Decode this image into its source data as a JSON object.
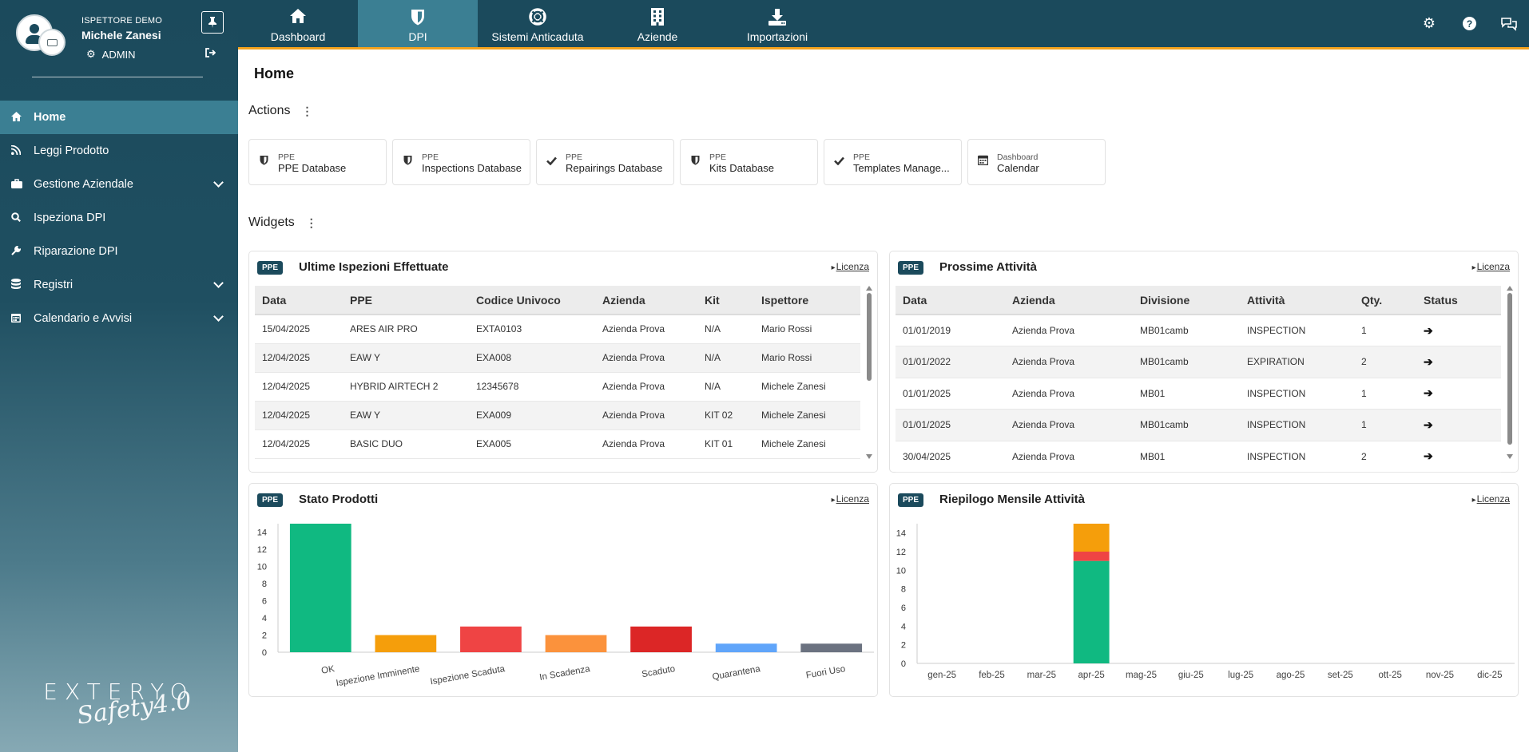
{
  "user": {
    "role": "ISPETTORE DEMO",
    "name": "Michele Zanesi",
    "level": "ADMIN"
  },
  "sidebar": {
    "items": [
      {
        "label": "Home",
        "icon": "home-icon",
        "active": true
      },
      {
        "label": "Leggi Prodotto",
        "icon": "rss-icon"
      },
      {
        "label": "Gestione Aziendale",
        "icon": "briefcase-icon",
        "expandable": true
      },
      {
        "label": "Ispeziona DPI",
        "icon": "search-icon"
      },
      {
        "label": "Riparazione DPI",
        "icon": "wrench-icon"
      },
      {
        "label": "Registri",
        "icon": "database-icon",
        "expandable": true
      },
      {
        "label": "Calendario e Avvisi",
        "icon": "calendar-icon",
        "expandable": true
      }
    ]
  },
  "brand": {
    "word": "EXTERYO",
    "sub": "Safety4.0"
  },
  "topnav": {
    "tabs": [
      {
        "label": "Dashboard",
        "icon": "home-icon"
      },
      {
        "label": "DPI",
        "icon": "shield-icon",
        "active": true
      },
      {
        "label": "Sistemi Anticaduta",
        "icon": "lifebuoy-icon"
      },
      {
        "label": "Aziende",
        "icon": "building-icon"
      },
      {
        "label": "Importazioni",
        "icon": "download-icon"
      }
    ],
    "right_icons": [
      "gears-icon",
      "help-icon",
      "chat-icon"
    ]
  },
  "page": {
    "title": "Home",
    "actions_label": "Actions",
    "widgets_label": "Widgets"
  },
  "actions": [
    {
      "category": "PPE",
      "name": "PPE Database",
      "icon": "shield-icon"
    },
    {
      "category": "PPE",
      "name": "Inspections Database",
      "icon": "shield-icon"
    },
    {
      "category": "PPE",
      "name": "Repairings Database",
      "icon": "check-icon"
    },
    {
      "category": "PPE",
      "name": "Kits Database",
      "icon": "shield-icon"
    },
    {
      "category": "PPE",
      "name": "Templates Manage...",
      "icon": "check-icon"
    },
    {
      "category": "Dashboard",
      "name": "Calendar",
      "icon": "calendar-icon"
    }
  ],
  "widgets": {
    "inspections": {
      "badge": "PPE",
      "title": "Ultime Ispezioni Effettuate",
      "link": "Licenza",
      "columns": [
        "Data",
        "PPE",
        "Codice Univoco",
        "Azienda",
        "Kit",
        "Ispettore"
      ],
      "rows": [
        [
          "15/04/2025",
          "ARES AIR PRO",
          "EXTA0103",
          "Azienda Prova",
          "N/A",
          "Mario Rossi"
        ],
        [
          "12/04/2025",
          "EAW Y",
          "EXA008",
          "Azienda Prova",
          "N/A",
          "Mario Rossi"
        ],
        [
          "12/04/2025",
          "HYBRID AIRTECH 2",
          "12345678",
          "Azienda Prova",
          "N/A",
          "Michele Zanesi"
        ],
        [
          "12/04/2025",
          "EAW Y",
          "EXA009",
          "Azienda Prova",
          "KIT 02",
          "Michele Zanesi"
        ],
        [
          "12/04/2025",
          "BASIC DUO",
          "EXA005",
          "Azienda Prova",
          "KIT 01",
          "Michele Zanesi"
        ]
      ]
    },
    "activities": {
      "badge": "PPE",
      "title": "Prossime Attività",
      "link": "Licenza",
      "columns": [
        "Data",
        "Azienda",
        "Divisione",
        "Attività",
        "Qty.",
        "Status"
      ],
      "rows": [
        [
          "01/01/2019",
          "Azienda Prova",
          "MB01camb",
          "INSPECTION",
          "1"
        ],
        [
          "01/01/2022",
          "Azienda Prova",
          "MB01camb",
          "EXPIRATION",
          "2"
        ],
        [
          "01/01/2025",
          "Azienda Prova",
          "MB01",
          "INSPECTION",
          "1"
        ],
        [
          "01/01/2025",
          "Azienda Prova",
          "MB01camb",
          "INSPECTION",
          "1"
        ],
        [
          "30/04/2025",
          "Azienda Prova",
          "MB01",
          "INSPECTION",
          "2"
        ]
      ],
      "status_icon": "arrow-right-icon"
    },
    "products": {
      "badge": "PPE",
      "title": "Stato Prodotti",
      "link": "Licenza"
    },
    "monthly": {
      "badge": "PPE",
      "title": "Riepilogo Mensile Attività",
      "link": "Licenza"
    }
  },
  "chart_data": [
    {
      "type": "bar",
      "title": "Stato Prodotti",
      "categories": [
        "OK",
        "Ispezione Imminente",
        "Ispezione Scaduta",
        "In Scadenza",
        "Scaduto",
        "Quarantena",
        "Fuori Uso"
      ],
      "values": [
        15,
        2,
        3,
        2,
        3,
        1,
        1
      ],
      "colors": [
        "#10b981",
        "#f59e0b",
        "#ef4444",
        "#fb923c",
        "#dc2626",
        "#60a5fa",
        "#6b7280"
      ],
      "yticks": [
        0,
        2,
        4,
        6,
        8,
        10,
        12,
        14
      ],
      "ylim": [
        0,
        15
      ]
    },
    {
      "type": "bar",
      "stacked": true,
      "title": "Riepilogo Mensile Attività",
      "categories": [
        "gen-25",
        "feb-25",
        "mar-25",
        "apr-25",
        "mag-25",
        "giu-25",
        "lug-25",
        "ago-25",
        "set-25",
        "ott-25",
        "nov-25",
        "dic-25"
      ],
      "series": [
        {
          "color": "#10b981",
          "values": [
            0,
            0,
            0,
            11,
            0,
            0,
            0,
            0,
            0,
            0,
            0,
            0
          ]
        },
        {
          "color": "#ef4444",
          "values": [
            0,
            0,
            0,
            1,
            0,
            0,
            0,
            0,
            0,
            0,
            0,
            0
          ]
        },
        {
          "color": "#f59e0b",
          "values": [
            0,
            0,
            0,
            3,
            0,
            0,
            0,
            0,
            0,
            0,
            0,
            0
          ]
        }
      ],
      "yticks": [
        0,
        2,
        4,
        6,
        8,
        10,
        12,
        14
      ],
      "ylim": [
        0,
        15
      ]
    }
  ]
}
